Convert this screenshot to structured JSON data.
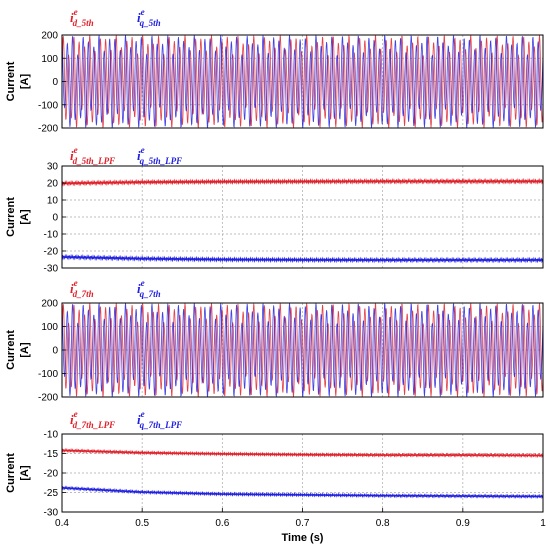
{
  "chart_data": [
    {
      "type": "line",
      "ylabel": [
        "Current",
        "[A]"
      ],
      "ylim": [
        -200,
        200
      ],
      "yticks": [
        200,
        100,
        0,
        -100,
        -200
      ],
      "xlim": [
        0.4,
        1.0
      ],
      "grid": true,
      "legend": [
        {
          "main": "i",
          "sup": "e",
          "sub": "d_5th",
          "color": "#e0202a"
        },
        {
          "main": "i",
          "sup": "e",
          "sub": "q_5th",
          "color": "#2020e0"
        }
      ],
      "series": [
        {
          "color": "#e0202a",
          "style": "oscillation",
          "amplitude": 200,
          "offset": 0,
          "period": 0.0066
        },
        {
          "color": "#2020e0",
          "style": "oscillation",
          "amplitude": 200,
          "offset": 0,
          "period": 0.0066
        }
      ]
    },
    {
      "type": "line",
      "ylabel": [
        "Current",
        "[A]"
      ],
      "ylim": [
        -30,
        30
      ],
      "yticks": [
        30,
        20,
        10,
        0,
        -10,
        -20,
        -30
      ],
      "xlim": [
        0.4,
        1.0
      ],
      "grid": true,
      "legend": [
        {
          "main": "i",
          "sup": "e",
          "sub": "d_5th_LPF",
          "color": "#e0202a"
        },
        {
          "main": "i",
          "sup": "e",
          "sub": "q_5th_LPF",
          "color": "#2020e0"
        }
      ],
      "series": [
        {
          "color": "#e0202a",
          "style": "ripple",
          "x": [
            0.4,
            0.5,
            0.6,
            0.7,
            0.8,
            0.9,
            1.0
          ],
          "y": [
            19.8,
            20.5,
            20.8,
            20.9,
            21.0,
            21.0,
            21.0
          ]
        },
        {
          "color": "#2020e0",
          "style": "ripple",
          "x": [
            0.4,
            0.5,
            0.6,
            0.7,
            0.8,
            0.9,
            1.0
          ],
          "y": [
            -23.5,
            -24.5,
            -25.0,
            -25.2,
            -25.3,
            -25.3,
            -25.3
          ]
        }
      ]
    },
    {
      "type": "line",
      "ylabel": [
        "Current",
        "[A]"
      ],
      "ylim": [
        -200,
        200
      ],
      "yticks": [
        200,
        100,
        0,
        -100,
        -200
      ],
      "xlim": [
        0.4,
        1.0
      ],
      "grid": true,
      "legend": [
        {
          "main": "i",
          "sup": "e",
          "sub": "d_7th",
          "color": "#e0202a"
        },
        {
          "main": "i",
          "sup": "e",
          "sub": "q_7th",
          "color": "#2020e0"
        }
      ],
      "series": [
        {
          "color": "#e0202a",
          "style": "oscillation",
          "amplitude": 200,
          "offset": 0,
          "period": 0.0066
        },
        {
          "color": "#2020e0",
          "style": "oscillation",
          "amplitude": 200,
          "offset": 0,
          "period": 0.0066
        }
      ]
    },
    {
      "type": "line",
      "ylabel": [
        "Current",
        "[A]"
      ],
      "ylim": [
        -30,
        -10
      ],
      "yticks": [
        -10,
        -15,
        -20,
        -25,
        -30
      ],
      "xlim": [
        0.4,
        1.0
      ],
      "xticks": [
        "0.4",
        "0.5",
        "0.6",
        "0.7",
        "0.8",
        "0.9",
        "1"
      ],
      "xlabel": "Time (s)",
      "grid": true,
      "legend": [
        {
          "main": "i",
          "sup": "e",
          "sub": "d_7th_LPF",
          "color": "#e0202a"
        },
        {
          "main": "i",
          "sup": "e",
          "sub": "q_7th_LPF",
          "color": "#2020e0"
        }
      ],
      "series": [
        {
          "color": "#e0202a",
          "style": "ripple",
          "x": [
            0.4,
            0.5,
            0.6,
            0.7,
            0.8,
            0.9,
            1.0
          ],
          "y": [
            -14.2,
            -14.8,
            -15.1,
            -15.3,
            -15.4,
            -15.4,
            -15.5
          ]
        },
        {
          "color": "#2020e0",
          "style": "ripple",
          "x": [
            0.4,
            0.5,
            0.6,
            0.7,
            0.8,
            0.9,
            1.0
          ],
          "y": [
            -23.8,
            -24.9,
            -25.4,
            -25.6,
            -25.8,
            -25.9,
            -26.0
          ]
        }
      ]
    }
  ]
}
